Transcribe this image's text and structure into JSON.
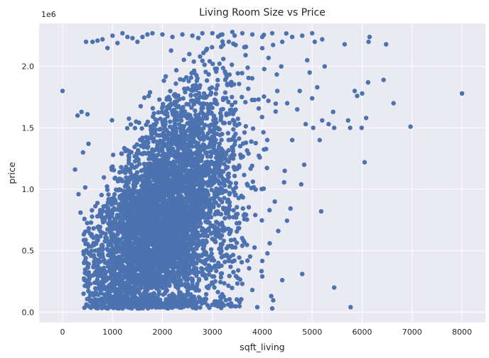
{
  "chart_data": {
    "type": "scatter",
    "title": "Living Room Size vs Price",
    "xlabel": "sqft_living",
    "ylabel": "price",
    "y_scale_label": "1e6",
    "xlim": [
      -470,
      8470
    ],
    "ylim": [
      -85000,
      2350000
    ],
    "x_ticks": [
      0,
      1000,
      2000,
      3000,
      4000,
      5000,
      6000,
      7000,
      8000
    ],
    "x_tick_labels": [
      "0",
      "1000",
      "2000",
      "3000",
      "4000",
      "5000",
      "6000",
      "7000",
      "8000"
    ],
    "y_ticks": [
      0,
      500000,
      1000000,
      1500000,
      2000000
    ],
    "y_tick_labels": [
      "0.0",
      "0.5",
      "1.0",
      "1.5",
      "2.0"
    ],
    "grid": true,
    "colors": {
      "background": "#eaeaf2",
      "grid": "#ffffff",
      "marker": "#4c72b0"
    },
    "series": [
      {
        "values_sample_note": "",
        "points": [
          [
            0,
            1800000
          ],
          [
            8000,
            1780000
          ],
          [
            6970,
            1510000
          ],
          [
            6630,
            1700000
          ],
          [
            6480,
            2180000
          ],
          [
            6430,
            1890000
          ],
          [
            6150,
            2240000
          ],
          [
            6130,
            2200000
          ],
          [
            6120,
            1870000
          ],
          [
            6080,
            1580000
          ],
          [
            6050,
            1220000
          ],
          [
            6000,
            1780000
          ],
          [
            5990,
            1500000
          ],
          [
            5900,
            1760000
          ],
          [
            5850,
            1800000
          ],
          [
            5770,
            40000
          ],
          [
            5760,
            1500000
          ],
          [
            5720,
            1560000
          ],
          [
            5650,
            2180000
          ],
          [
            5440,
            200000
          ],
          [
            5440,
            1500000
          ],
          [
            5420,
            1630000
          ],
          [
            5330,
            1530000
          ],
          [
            5250,
            2000000
          ],
          [
            5200,
            1560000
          ],
          [
            5180,
            820000
          ],
          [
            5150,
            1400000
          ],
          [
            5100,
            1830000
          ],
          [
            5050,
            2200000
          ],
          [
            5020,
            1500000
          ],
          [
            5000,
            1740000
          ],
          [
            4950,
            1950000
          ],
          [
            4900,
            2050000
          ],
          [
            4870,
            1530000
          ],
          [
            4840,
            1200000
          ],
          [
            4800,
            310000
          ],
          [
            4780,
            1040000
          ],
          [
            4750,
            1800000
          ],
          [
            4700,
            1650000
          ],
          [
            4600,
            1400000
          ],
          [
            4500,
            1700000
          ],
          [
            4450,
            1150000
          ],
          [
            4400,
            260000
          ],
          [
            4380,
            2000000
          ],
          [
            4300,
            1800000
          ],
          [
            4250,
            900000
          ],
          [
            4200,
            30000
          ],
          [
            4180,
            130000
          ],
          [
            4150,
            560000
          ],
          [
            4100,
            1400000
          ],
          [
            380,
            1630000
          ],
          [
            300,
            1600000
          ],
          [
            250,
            1160000
          ],
          [
            320,
            960000
          ],
          [
            360,
            810000
          ],
          [
            410,
            1300000
          ],
          [
            430,
            400000
          ],
          [
            470,
            2200000
          ],
          [
            500,
            1610000
          ],
          [
            520,
            1370000
          ],
          [
            600,
            2200000
          ],
          [
            700,
            2210000
          ],
          [
            800,
            2220000
          ],
          [
            900,
            2150000
          ],
          [
            1000,
            2250000
          ],
          [
            1100,
            2190000
          ],
          [
            1200,
            2270000
          ],
          [
            1300,
            2240000
          ],
          [
            1400,
            2230000
          ],
          [
            1500,
            2200000
          ],
          [
            1600,
            2240000
          ],
          [
            1700,
            2260000
          ],
          [
            1800,
            2270000
          ],
          [
            2000,
            2260000
          ],
          [
            2200,
            2240000
          ],
          [
            2400,
            2260000
          ],
          [
            2600,
            2250000
          ],
          [
            2800,
            2270000
          ],
          [
            3000,
            2270000
          ],
          [
            3200,
            2260000
          ],
          [
            3400,
            2280000
          ],
          [
            3600,
            2270000
          ],
          [
            3800,
            2260000
          ],
          [
            4000,
            2240000
          ],
          [
            4200,
            2270000
          ],
          [
            4400,
            2200000
          ],
          [
            4600,
            2240000
          ],
          [
            4800,
            2250000
          ],
          [
            5000,
            2270000
          ],
          [
            5200,
            2220000
          ],
          [
            700,
            40000
          ],
          [
            800,
            50000
          ],
          [
            900,
            30000
          ],
          [
            1000,
            60000
          ],
          [
            1100,
            40000
          ],
          [
            1200,
            30000
          ],
          [
            1300,
            50000
          ],
          [
            1400,
            40000
          ],
          [
            1500,
            30000
          ],
          [
            1600,
            50000
          ],
          [
            1700,
            40000
          ],
          [
            1800,
            60000
          ],
          [
            1900,
            40000
          ],
          [
            2000,
            70000
          ],
          [
            2200,
            60000
          ],
          [
            2400,
            90000
          ],
          [
            2600,
            70000
          ],
          [
            2800,
            100000
          ],
          [
            3000,
            60000
          ],
          [
            3200,
            70000
          ],
          [
            3400,
            50000
          ],
          [
            3600,
            230000
          ],
          [
            3800,
            180000
          ],
          [
            4000,
            290000
          ],
          [
            3900,
            40000
          ]
        ]
      }
    ]
  }
}
